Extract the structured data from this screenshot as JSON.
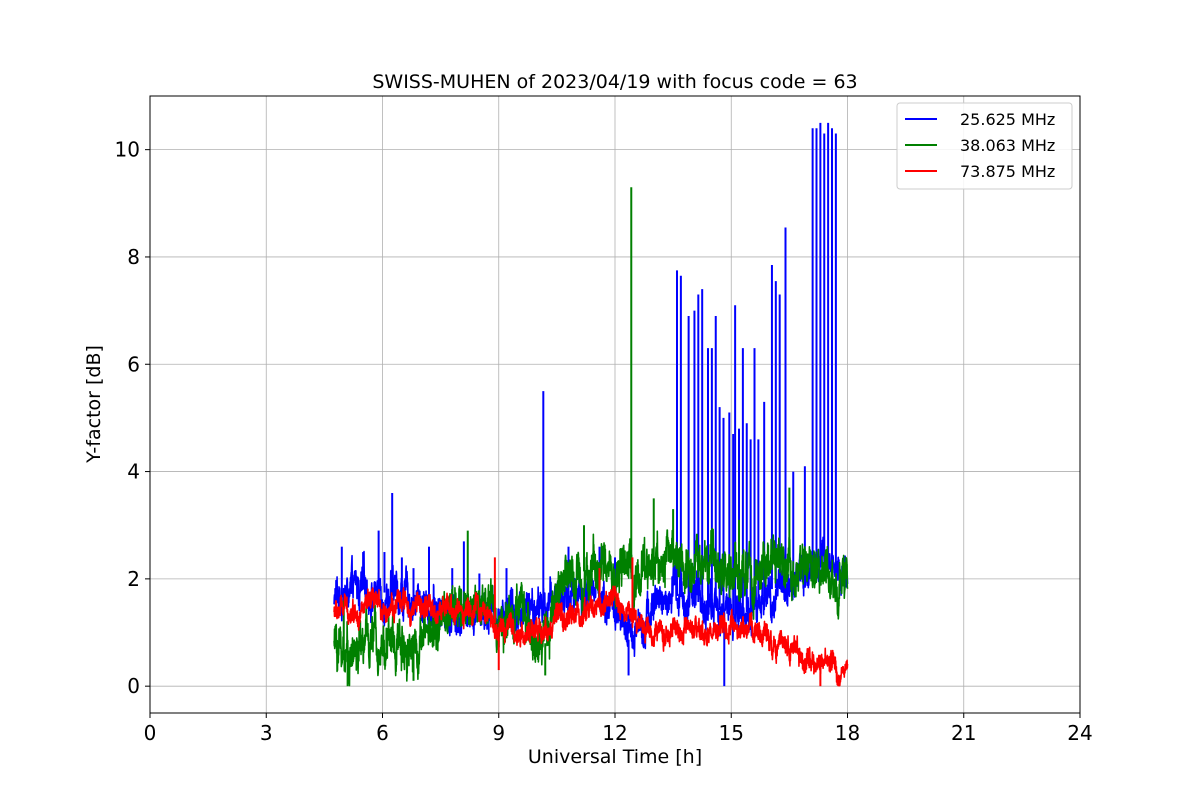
{
  "chart_data": {
    "type": "line",
    "title": "SWISS-MUHEN of 2023/04/19 with focus code = 63",
    "xlabel": "Universal Time [h]",
    "ylabel": "Y-factor [dB]",
    "xlim": [
      0,
      24
    ],
    "ylim": [
      -0.5,
      11
    ],
    "xticks": [
      0,
      3,
      6,
      9,
      12,
      15,
      18,
      21,
      24
    ],
    "yticks": [
      0,
      2,
      4,
      6,
      8,
      10
    ],
    "grid": true,
    "legend_position": "top-right",
    "x_range_of_data": [
      4.75,
      18.0
    ],
    "series": [
      {
        "name": "25.625 MHz",
        "color": "#0000ff",
        "baseline": [
          [
            4.75,
            1.6
          ],
          [
            5.5,
            1.8
          ],
          [
            6.5,
            1.7
          ],
          [
            7.5,
            1.4
          ],
          [
            8.5,
            1.5
          ],
          [
            9.0,
            1.3
          ],
          [
            9.5,
            1.5
          ],
          [
            10.0,
            1.4
          ],
          [
            10.5,
            1.6
          ],
          [
            11.0,
            1.7
          ],
          [
            11.5,
            1.9
          ],
          [
            12.0,
            1.4
          ],
          [
            12.3,
            0.8
          ],
          [
            12.6,
            1.2
          ],
          [
            13.0,
            1.5
          ],
          [
            13.5,
            1.7
          ],
          [
            14.0,
            1.6
          ],
          [
            14.5,
            1.5
          ],
          [
            15.0,
            1.3
          ],
          [
            15.5,
            1.4
          ],
          [
            16.0,
            1.8
          ],
          [
            16.5,
            1.9
          ],
          [
            17.0,
            2.1
          ],
          [
            17.5,
            2.3
          ],
          [
            18.0,
            2.1
          ]
        ],
        "noise": 0.45,
        "spikes": [
          [
            4.95,
            2.6
          ],
          [
            5.2,
            2.1
          ],
          [
            5.5,
            2.5
          ],
          [
            5.9,
            2.9
          ],
          [
            6.05,
            2.5
          ],
          [
            6.25,
            3.6
          ],
          [
            6.5,
            2.4
          ],
          [
            6.8,
            2.2
          ],
          [
            7.2,
            2.6
          ],
          [
            7.8,
            2.2
          ],
          [
            8.1,
            2.7
          ],
          [
            8.5,
            2.1
          ],
          [
            9.2,
            2.2
          ],
          [
            10.15,
            5.5
          ],
          [
            10.8,
            2.6
          ],
          [
            11.6,
            2.6
          ],
          [
            12.0,
            2.4
          ],
          [
            13.6,
            7.75
          ],
          [
            13.7,
            7.65
          ],
          [
            13.9,
            6.9
          ],
          [
            14.05,
            7.0
          ],
          [
            14.15,
            7.3
          ],
          [
            14.25,
            7.4
          ],
          [
            14.4,
            6.3
          ],
          [
            14.5,
            6.3
          ],
          [
            14.6,
            6.9
          ],
          [
            14.7,
            5.2
          ],
          [
            14.8,
            5.0
          ],
          [
            14.95,
            5.1
          ],
          [
            15.05,
            4.7
          ],
          [
            15.1,
            7.1
          ],
          [
            15.2,
            4.8
          ],
          [
            15.3,
            6.3
          ],
          [
            15.4,
            4.9
          ],
          [
            15.5,
            4.6
          ],
          [
            15.6,
            6.3
          ],
          [
            15.7,
            4.6
          ],
          [
            15.85,
            5.3
          ],
          [
            16.05,
            7.85
          ],
          [
            16.15,
            7.55
          ],
          [
            16.25,
            7.3
          ],
          [
            16.4,
            8.55
          ],
          [
            16.6,
            4.0
          ],
          [
            16.9,
            4.1
          ],
          [
            17.1,
            10.4
          ],
          [
            17.2,
            10.4
          ],
          [
            17.3,
            10.5
          ],
          [
            17.4,
            10.3
          ],
          [
            17.5,
            10.5
          ],
          [
            17.6,
            10.4
          ],
          [
            17.7,
            10.3
          ]
        ],
        "dips": [
          [
            12.35,
            0.2
          ],
          [
            14.82,
            0.0
          ]
        ]
      },
      {
        "name": "38.063 MHz",
        "color": "#008000",
        "baseline": [
          [
            4.75,
            0.8
          ],
          [
            5.2,
            0.6
          ],
          [
            5.8,
            0.9
          ],
          [
            6.5,
            0.8
          ],
          [
            7.0,
            0.9
          ],
          [
            7.5,
            1.2
          ],
          [
            8.0,
            1.4
          ],
          [
            8.5,
            1.6
          ],
          [
            9.0,
            1.2
          ],
          [
            9.5,
            1.4
          ],
          [
            10.0,
            0.8
          ],
          [
            10.3,
            0.8
          ],
          [
            10.5,
            1.9
          ],
          [
            11.0,
            2.1
          ],
          [
            11.5,
            2.2
          ],
          [
            12.0,
            2.2
          ],
          [
            12.5,
            2.1
          ],
          [
            13.0,
            2.3
          ],
          [
            13.5,
            2.4
          ],
          [
            14.0,
            2.3
          ],
          [
            14.5,
            2.2
          ],
          [
            15.0,
            2.1
          ],
          [
            15.5,
            2.1
          ],
          [
            16.0,
            2.1
          ],
          [
            16.5,
            2.4
          ],
          [
            17.0,
            2.0
          ],
          [
            17.5,
            2.0
          ],
          [
            18.0,
            1.9
          ]
        ],
        "noise": 0.55,
        "spikes": [
          [
            5.0,
            1.6
          ],
          [
            8.2,
            2.9
          ],
          [
            12.42,
            9.3
          ],
          [
            11.2,
            3.0
          ],
          [
            13.0,
            3.5
          ],
          [
            13.5,
            3.3
          ],
          [
            16.5,
            3.7
          ],
          [
            15.2,
            3.1
          ]
        ],
        "dips": [
          [
            5.1,
            0.0
          ],
          [
            6.8,
            0.1
          ],
          [
            10.2,
            0.2
          ]
        ]
      },
      {
        "name": "73.875 MHz",
        "color": "#ff0000",
        "baseline": [
          [
            4.75,
            1.4
          ],
          [
            5.5,
            1.45
          ],
          [
            6.5,
            1.5
          ],
          [
            7.5,
            1.4
          ],
          [
            8.5,
            1.45
          ],
          [
            9.0,
            1.1
          ],
          [
            9.5,
            1.0
          ],
          [
            10.0,
            1.0
          ],
          [
            10.5,
            1.2
          ],
          [
            11.0,
            1.3
          ],
          [
            11.5,
            1.5
          ],
          [
            12.0,
            1.6
          ],
          [
            12.5,
            1.3
          ],
          [
            13.0,
            1.0
          ],
          [
            13.5,
            1.0
          ],
          [
            14.0,
            0.9
          ],
          [
            14.5,
            1.0
          ],
          [
            15.0,
            1.0
          ],
          [
            15.5,
            1.1
          ],
          [
            16.0,
            0.9
          ],
          [
            16.5,
            0.8
          ],
          [
            17.0,
            0.4
          ],
          [
            17.5,
            0.35
          ],
          [
            18.0,
            0.35
          ]
        ],
        "noise": 0.28,
        "spikes": [
          [
            8.9,
            2.4
          ],
          [
            11.6,
            2.2
          ],
          [
            12.45,
            2.4
          ]
        ],
        "dips": [
          [
            9.0,
            0.3
          ],
          [
            17.3,
            0.0
          ]
        ]
      }
    ]
  }
}
